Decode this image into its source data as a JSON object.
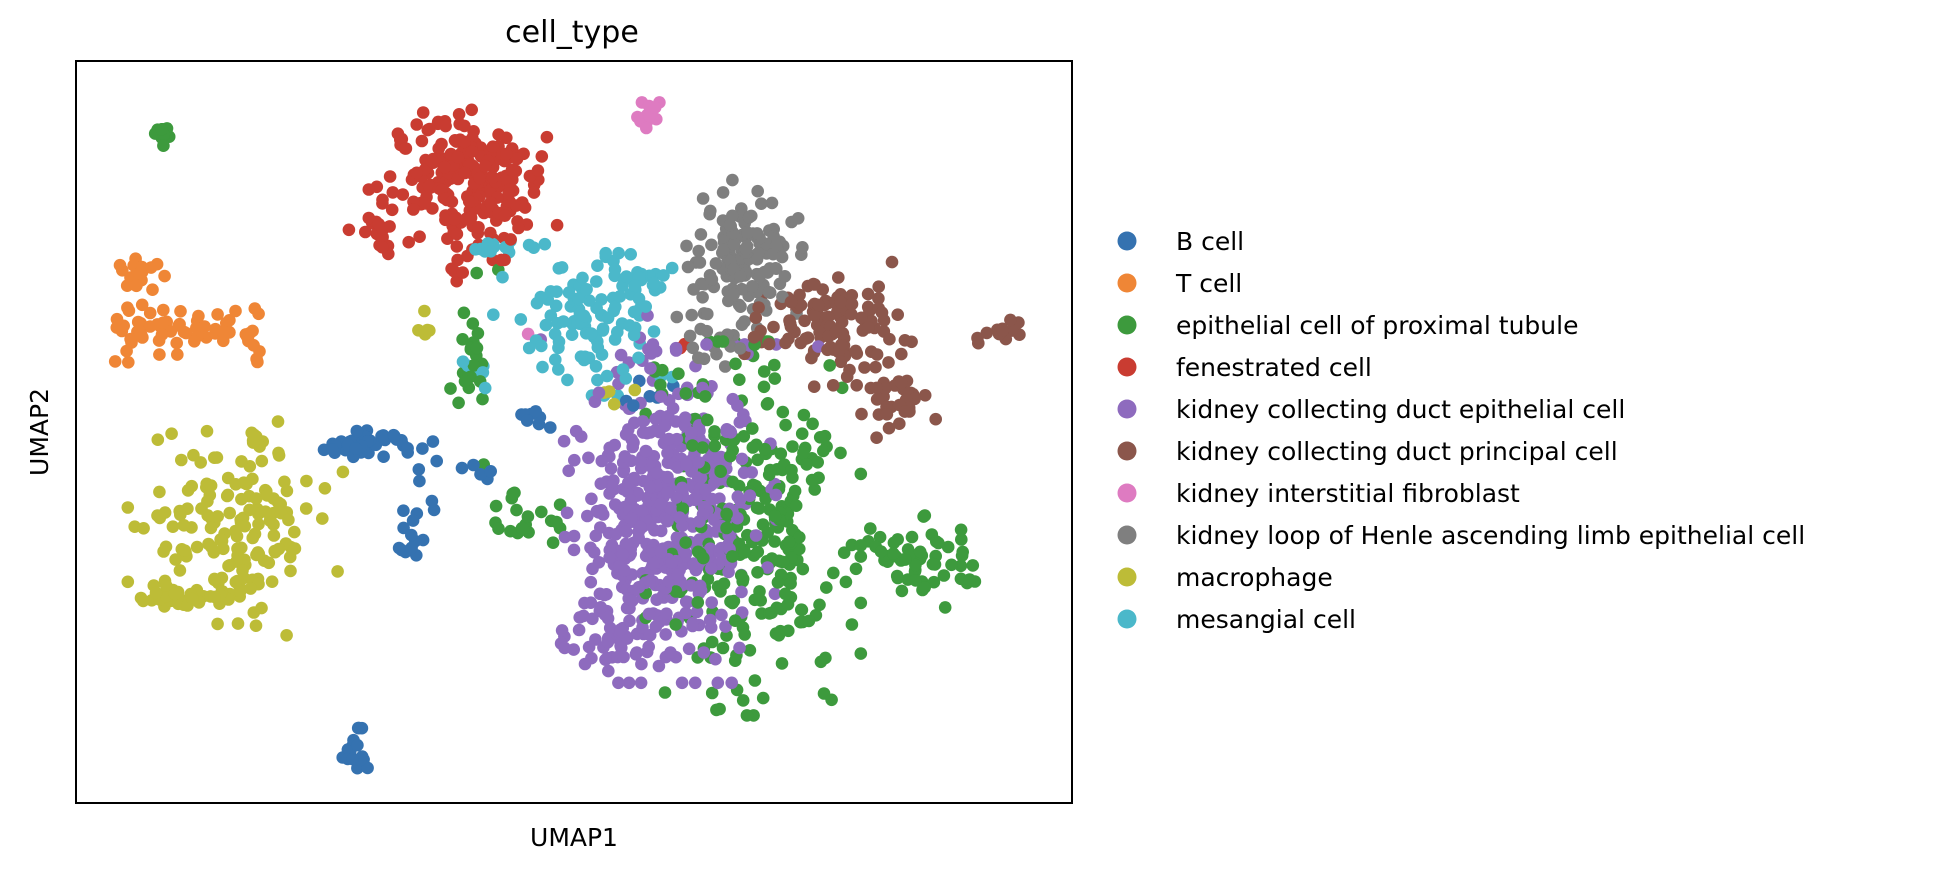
{
  "chart_data": {
    "type": "scatter",
    "title": "cell_type",
    "xlabel": "UMAP1",
    "ylabel": "UMAP2",
    "xlim": [
      0,
      100
    ],
    "ylim": [
      0,
      100
    ],
    "grid": false,
    "ticks": false,
    "legend": "right, outside plot",
    "series": [
      {
        "name": "B cell",
        "color": "#3572b0",
        "clusters": [
          {
            "cx": 29.5,
            "cy": 48.5,
            "sx": 2.2,
            "sy": 1.0,
            "n": 40
          },
          {
            "cx": 46.0,
            "cy": 52.0,
            "sx": 1.0,
            "sy": 0.7,
            "n": 8
          },
          {
            "cx": 33.5,
            "cy": 36.0,
            "sx": 0.8,
            "sy": 2.5,
            "n": 12
          },
          {
            "cx": 35.5,
            "cy": 44.0,
            "sx": 0.5,
            "sy": 3.0,
            "n": 6
          },
          {
            "cx": 40.5,
            "cy": 45.0,
            "sx": 1.0,
            "sy": 1.0,
            "n": 5
          },
          {
            "cx": 28.0,
            "cy": 6.5,
            "sx": 0.8,
            "sy": 1.5,
            "n": 18
          },
          {
            "cx": 56.5,
            "cy": 56.0,
            "sx": 1.5,
            "sy": 1.5,
            "n": 6
          }
        ]
      },
      {
        "name": "T cell",
        "color": "#ef8636",
        "clusters": [
          {
            "cx": 6.5,
            "cy": 71.5,
            "sx": 1.2,
            "sy": 1.5,
            "n": 22
          },
          {
            "cx": 11.5,
            "cy": 64.5,
            "sx": 4.5,
            "sy": 2.0,
            "n": 50
          },
          {
            "cx": 5.5,
            "cy": 63.0,
            "sx": 1.0,
            "sy": 1.5,
            "n": 10
          },
          {
            "cx": 18.0,
            "cy": 63.0,
            "sx": 0.6,
            "sy": 1.5,
            "n": 5
          }
        ]
      },
      {
        "name": "epithelial cell of proximal tubule",
        "color": "#3d9a3d",
        "clusters": [
          {
            "cx": 68.0,
            "cy": 37.0,
            "sx": 4.5,
            "sy": 10.5,
            "n": 280
          },
          {
            "cx": 84.5,
            "cy": 33.0,
            "sx": 3.0,
            "sy": 2.8,
            "n": 60
          },
          {
            "cx": 45.0,
            "cy": 37.0,
            "sx": 1.5,
            "sy": 2.0,
            "n": 20
          },
          {
            "cx": 40.0,
            "cy": 60.0,
            "sx": 1.0,
            "sy": 6.0,
            "n": 22
          },
          {
            "cx": 8.5,
            "cy": 90.5,
            "sx": 0.4,
            "sy": 0.8,
            "n": 12
          },
          {
            "cx": 59.0,
            "cy": 58.0,
            "sx": 1.0,
            "sy": 1.0,
            "n": 5
          }
        ]
      },
      {
        "name": "fenestrated cell",
        "color": "#c93c31",
        "clusters": [
          {
            "cx": 39.0,
            "cy": 84.0,
            "sx": 4.0,
            "sy": 4.5,
            "n": 230
          },
          {
            "cx": 31.0,
            "cy": 77.0,
            "sx": 1.5,
            "sy": 1.5,
            "n": 15
          },
          {
            "cx": 38.0,
            "cy": 70.0,
            "sx": 0.5,
            "sy": 2.0,
            "n": 4
          },
          {
            "cx": 61.0,
            "cy": 61.0,
            "sx": 0.5,
            "sy": 0.5,
            "n": 2
          }
        ]
      },
      {
        "name": "kidney collecting duct epithelial cell",
        "color": "#8e6bbe",
        "clusters": [
          {
            "cx": 59.5,
            "cy": 39.0,
            "sx": 4.5,
            "sy": 9.5,
            "n": 500
          },
          {
            "cx": 53.5,
            "cy": 22.0,
            "sx": 2.2,
            "sy": 2.0,
            "n": 35
          },
          {
            "cx": 58.0,
            "cy": 60.0,
            "sx": 1.0,
            "sy": 3.0,
            "n": 6
          },
          {
            "cx": 46.0,
            "cy": 63.0,
            "sx": 0.5,
            "sy": 0.5,
            "n": 1
          },
          {
            "cx": 74.5,
            "cy": 60.5,
            "sx": 0.5,
            "sy": 0.5,
            "n": 1
          }
        ]
      },
      {
        "name": "kidney collecting duct principal cell",
        "color": "#8b564b",
        "clusters": [
          {
            "cx": 75.5,
            "cy": 64.5,
            "sx": 3.5,
            "sy": 3.5,
            "n": 110
          },
          {
            "cx": 82.0,
            "cy": 54.5,
            "sx": 1.8,
            "sy": 2.5,
            "n": 35
          },
          {
            "cx": 93.0,
            "cy": 63.5,
            "sx": 1.3,
            "sy": 0.8,
            "n": 14
          }
        ]
      },
      {
        "name": "kidney interstitial fibroblast",
        "color": "#de7bc1",
        "clusters": [
          {
            "cx": 57.5,
            "cy": 92.5,
            "sx": 0.6,
            "sy": 0.8,
            "n": 12
          },
          {
            "cx": 46.0,
            "cy": 62.5,
            "sx": 0.3,
            "sy": 0.3,
            "n": 1
          }
        ]
      },
      {
        "name": "kidney loop of Henle ascending limb epithelial cell",
        "color": "#7f7f7f",
        "clusters": [
          {
            "cx": 67.0,
            "cy": 73.5,
            "sx": 3.0,
            "sy": 4.5,
            "n": 150
          },
          {
            "cx": 64.0,
            "cy": 61.5,
            "sx": 1.5,
            "sy": 1.5,
            "n": 10
          }
        ]
      },
      {
        "name": "macrophage",
        "color": "#bdbc37",
        "clusters": [
          {
            "cx": 16.0,
            "cy": 37.0,
            "sx": 4.5,
            "sy": 6.0,
            "n": 150
          },
          {
            "cx": 10.5,
            "cy": 28.0,
            "sx": 2.5,
            "sy": 1.0,
            "n": 40
          },
          {
            "cx": 18.0,
            "cy": 49.0,
            "sx": 0.4,
            "sy": 0.6,
            "n": 8
          },
          {
            "cx": 34.5,
            "cy": 64.0,
            "sx": 1.0,
            "sy": 1.0,
            "n": 5
          },
          {
            "cx": 54.0,
            "cy": 55.0,
            "sx": 1.5,
            "sy": 1.0,
            "n": 4
          }
        ]
      },
      {
        "name": "mesangial cell",
        "color": "#4bb8ca",
        "clusters": [
          {
            "cx": 51.5,
            "cy": 64.5,
            "sx": 4.0,
            "sy": 4.0,
            "n": 110
          },
          {
            "cx": 42.5,
            "cy": 75.0,
            "sx": 3.0,
            "sy": 0.8,
            "n": 15
          },
          {
            "cx": 40.5,
            "cy": 58.0,
            "sx": 1.0,
            "sy": 1.5,
            "n": 6
          },
          {
            "cx": 57.5,
            "cy": 70.5,
            "sx": 2.5,
            "sy": 1.0,
            "n": 15
          }
        ]
      }
    ]
  }
}
